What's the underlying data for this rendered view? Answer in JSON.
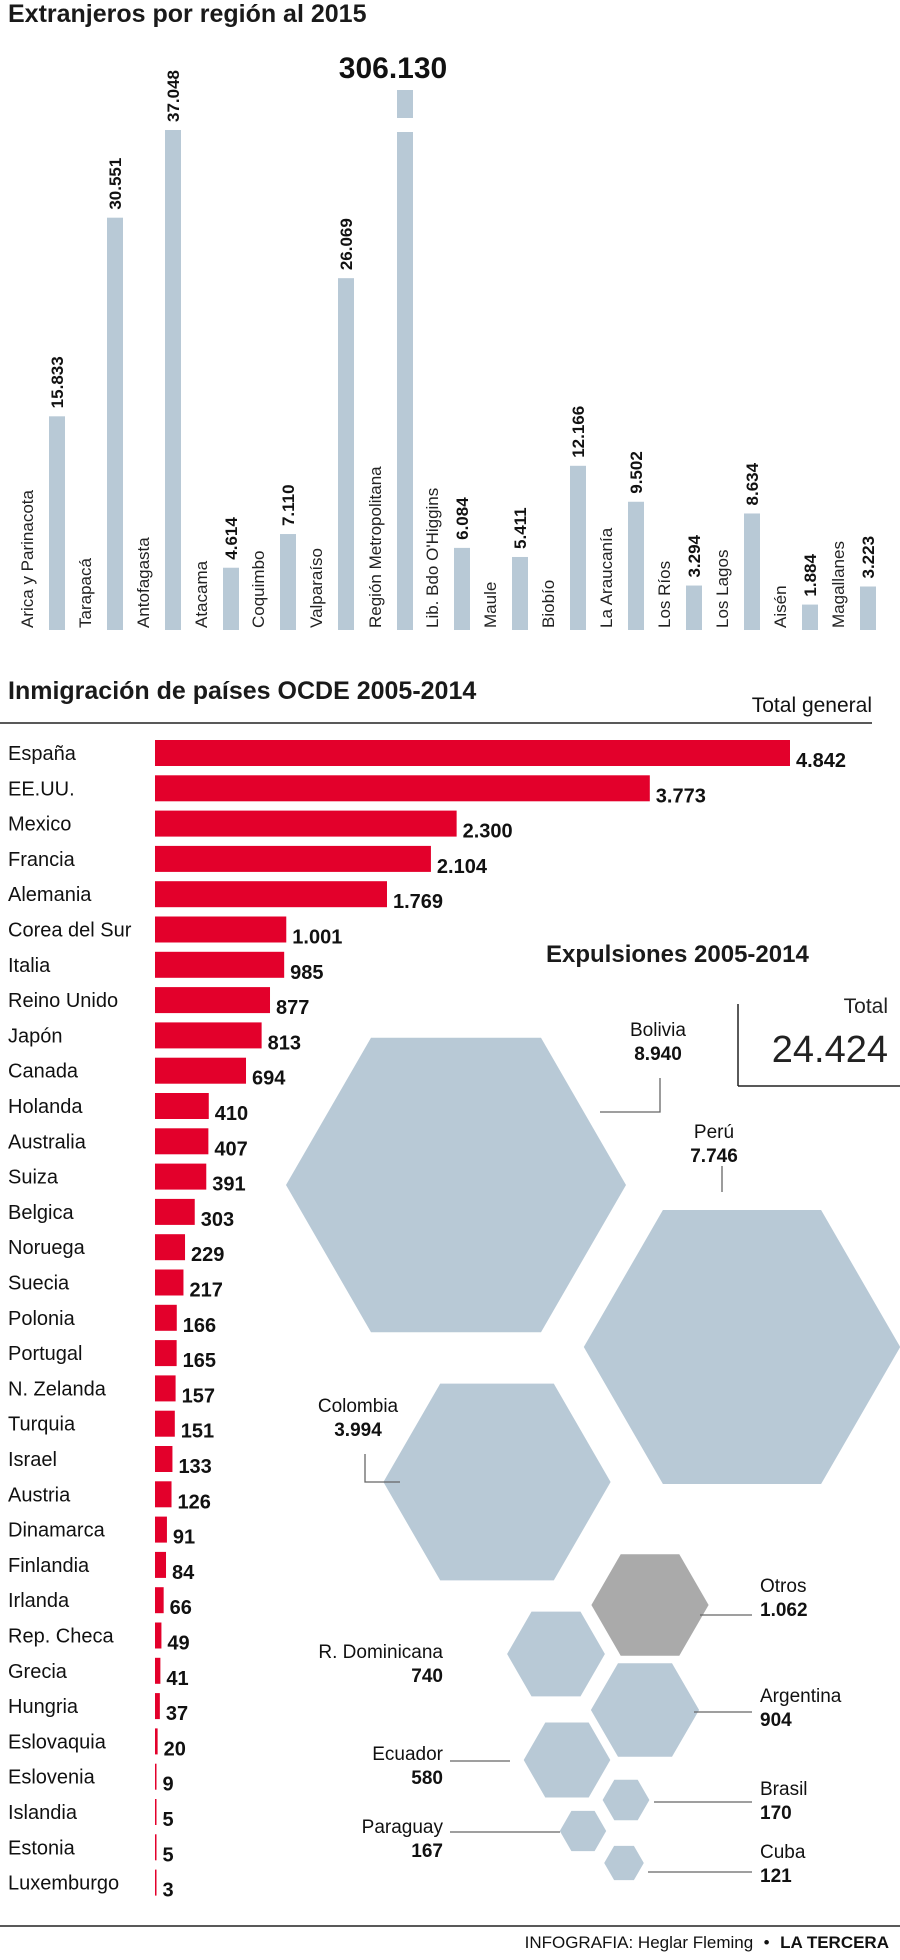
{
  "chart_data": [
    {
      "type": "bar",
      "title": "Extranjeros por región al 2015",
      "categories": [
        "Arica y Parinacota",
        "Tarapacá",
        "Antofagasta",
        "Atacama",
        "Coquimbo",
        "Valparaíso",
        "Región Metropolitana",
        "Lib. Bdo O'Higgins",
        "Maule",
        "Biobío",
        "La Araucanía",
        "Los Ríos",
        "Los Lagos",
        "Aisén",
        "Magallanes"
      ],
      "values": [
        15833,
        30551,
        37048,
        4614,
        7110,
        26069,
        306130,
        6084,
        5411,
        12166,
        9502,
        3294,
        8634,
        1884,
        3223
      ],
      "value_labels": [
        "15.833",
        "30.551",
        "37.048",
        "4.614",
        "7.110",
        "26.069",
        "306.130",
        "6.084",
        "5.411",
        "12.166",
        "9.502",
        "3.294",
        "8.634",
        "1.884",
        "3.223"
      ],
      "broken_axis_category": "Región Metropolitana",
      "color": "#b8c9d6"
    },
    {
      "type": "bar",
      "orientation": "horizontal",
      "title": "Inmigración de países OCDE 2005-2014",
      "column_header": "Total general",
      "categories": [
        "España",
        "EE.UU.",
        "Mexico",
        "Francia",
        "Alemania",
        "Corea del Sur",
        "Italia",
        "Reino Unido",
        "Japón",
        "Canada",
        "Holanda",
        "Australia",
        "Suiza",
        "Belgica",
        "Noruega",
        "Suecia",
        "Polonia",
        "Portugal",
        "N. Zelanda",
        "Turquia",
        "Israel",
        "Austria",
        "Dinamarca",
        "Finlandia",
        "Irlanda",
        "Rep. Checa",
        "Grecia",
        "Hungria",
        "Eslovaquia",
        "Eslovenia",
        "Islandia",
        "Estonia",
        "Luxemburgo"
      ],
      "values": [
        4842,
        3773,
        2300,
        2104,
        1769,
        1001,
        985,
        877,
        813,
        694,
        410,
        407,
        391,
        303,
        229,
        217,
        166,
        165,
        157,
        151,
        133,
        126,
        91,
        84,
        66,
        49,
        41,
        37,
        20,
        9,
        5,
        5,
        3
      ],
      "value_labels": [
        "4.842",
        "3.773",
        "2.300",
        "2.104",
        "1.769",
        "1.001",
        "985",
        "877",
        "813",
        "694",
        "410",
        "407",
        "391",
        "303",
        "229",
        "217",
        "166",
        "165",
        "157",
        "151",
        "133",
        "126",
        "91",
        "84",
        "66",
        "49",
        "41",
        "37",
        "20",
        "9",
        "5",
        "5",
        "3"
      ],
      "color": "#e3002b"
    },
    {
      "type": "bubble",
      "shape": "hexagon",
      "title": "Expulsiones 2005-2014",
      "total_label": "Total",
      "total_value": "24.424",
      "categories": [
        "Bolivia",
        "Perú",
        "Colombia",
        "Otros",
        "R. Dominicana",
        "Argentina",
        "Ecuador",
        "Brasil",
        "Paraguay",
        "Cuba"
      ],
      "values": [
        8940,
        7746,
        3994,
        1062,
        740,
        904,
        580,
        170,
        167,
        121
      ],
      "value_labels": [
        "8.940",
        "7.746",
        "3.994",
        "1.062",
        "740",
        "904",
        "580",
        "170",
        "167",
        "121"
      ],
      "color": "#b8c9d6",
      "highlight": {
        "Otros": "#aaaaaa"
      }
    }
  ],
  "credit": {
    "prefix": "INFOGRAFIA: Heglar Fleming",
    "separator": "•",
    "source": "LA TERCERA"
  }
}
